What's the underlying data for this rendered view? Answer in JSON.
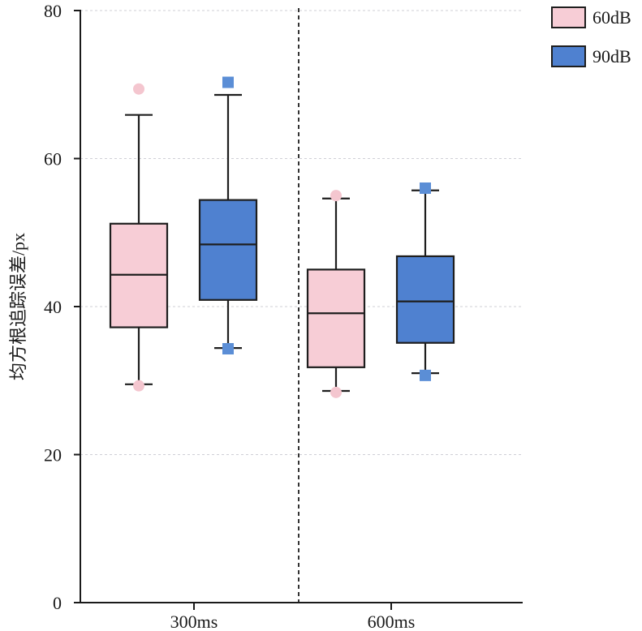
{
  "chart_data": {
    "type": "box",
    "title": "",
    "xlabel": "",
    "ylabel": "均方根追踪误差/px",
    "ylim": [
      0,
      80
    ],
    "yticks": [
      0,
      20,
      40,
      60,
      80
    ],
    "grid": true,
    "legend_position": "top-right",
    "categories": [
      "300ms",
      "600ms"
    ],
    "series": [
      {
        "name": "60dB",
        "color": "#f7cdd6",
        "outlier_color": "#f4c6cf",
        "boxes": [
          {
            "category": "300ms",
            "whisker_low": 29.5,
            "q1": 37.2,
            "median": 44.3,
            "q3": 51.2,
            "whisker_high": 65.9,
            "outliers": [
              29.3,
              69.4
            ]
          },
          {
            "category": "600ms",
            "whisker_low": 28.6,
            "q1": 31.8,
            "median": 39.1,
            "q3": 45.0,
            "whisker_high": 54.6,
            "outliers": [
              28.4,
              55.0
            ]
          }
        ]
      },
      {
        "name": "90dB",
        "color": "#4f81d0",
        "outlier_color": "#5b8ed6",
        "boxes": [
          {
            "category": "300ms",
            "whisker_low": 34.4,
            "q1": 40.9,
            "median": 48.4,
            "q3": 54.4,
            "whisker_high": 68.6,
            "outliers": [
              34.3,
              70.3
            ]
          },
          {
            "category": "600ms",
            "whisker_low": 31.0,
            "q1": 35.1,
            "median": 40.7,
            "q3": 46.8,
            "whisker_high": 55.7,
            "outliers": [
              30.7,
              56.0
            ]
          }
        ]
      }
    ]
  }
}
